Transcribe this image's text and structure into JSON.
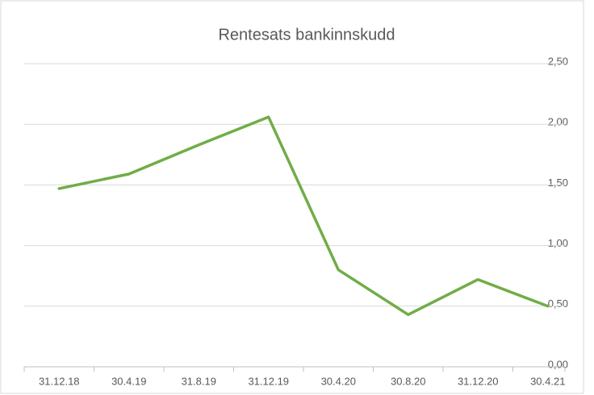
{
  "chart_data": {
    "type": "line",
    "title": "Rentesats bankinnskudd",
    "categories": [
      "31.12.18",
      "30.4.19",
      "31.8.19",
      "31.12.19",
      "30.4.20",
      "30.8.20",
      "31.12.20",
      "30.4.21"
    ],
    "values": [
      1.47,
      1.59,
      1.83,
      2.06,
      0.8,
      0.43,
      0.72,
      0.5
    ],
    "color": "#70ad47",
    "ylim": [
      0,
      2.5
    ],
    "yticks": [
      {
        "value": 0,
        "label": "0,00"
      },
      {
        "value": 0.5,
        "label": "0,50"
      },
      {
        "value": 1,
        "label": "1,00"
      },
      {
        "value": 1.5,
        "label": "1,50"
      },
      {
        "value": 2,
        "label": "2,00"
      },
      {
        "value": 2.5,
        "label": "2,50"
      }
    ],
    "grid": true
  }
}
